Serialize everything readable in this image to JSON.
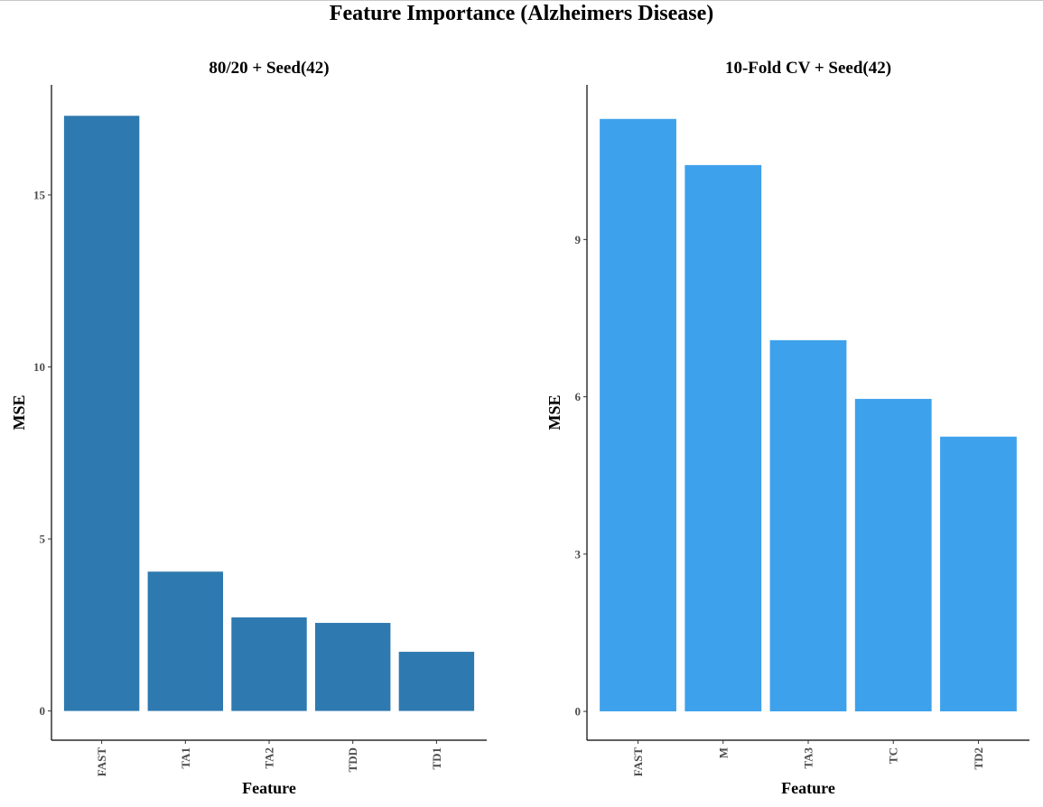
{
  "title": "Feature Importance (Alzheimers Disease)",
  "chart_data": [
    {
      "type": "bar",
      "title": "80/20 + Seed(42)",
      "xlabel": "Feature",
      "ylabel": "MSE",
      "categories": [
        "FAST",
        "TA1",
        "TA2",
        "TDD",
        "TD1"
      ],
      "values": [
        17.3,
        4.05,
        2.72,
        2.56,
        1.72
      ],
      "ylim": [
        -0.85,
        18.2
      ],
      "yticks": [
        0,
        5,
        10,
        15
      ],
      "color": "#2e79b0",
      "grid": false,
      "legend": "none"
    },
    {
      "type": "bar",
      "title": "10-Fold CV + Seed(42)",
      "xlabel": "Feature",
      "ylabel": "MSE",
      "categories": [
        "FAST",
        "M",
        "TA3",
        "TC",
        "TD2"
      ],
      "values": [
        11.3,
        10.42,
        7.08,
        5.96,
        5.24
      ],
      "ylim": [
        -0.55,
        11.95
      ],
      "yticks": [
        0,
        3,
        6,
        9
      ],
      "color": "#3ea1eb",
      "grid": false,
      "legend": "none"
    }
  ]
}
